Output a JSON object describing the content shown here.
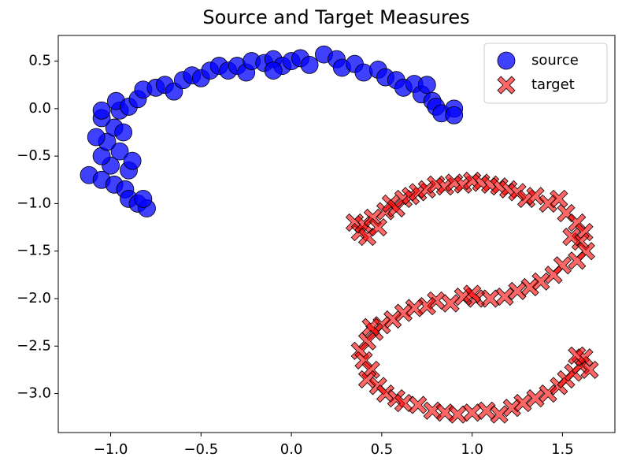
{
  "chart_data": {
    "type": "scatter",
    "title": "Source and Target Measures",
    "xlim": [
      -1.29,
      1.79
    ],
    "ylim": [
      -3.41,
      0.77
    ],
    "xticks": [
      {
        "value": -1.0,
        "label": "−1.0"
      },
      {
        "value": -0.5,
        "label": "−0.5"
      },
      {
        "value": 0.0,
        "label": "0.0"
      },
      0.5,
      {
        "value": 1.0,
        "label": "1.0"
      },
      1.5
    ],
    "yticks": [
      0.5,
      {
        "value": 0.0,
        "label": "0.0"
      },
      {
        "value": -0.5,
        "label": "−0.5"
      },
      {
        "value": -1.0,
        "label": "−1.0"
      },
      {
        "value": -1.5,
        "label": "−1.5"
      },
      {
        "value": -2.0,
        "label": "−2.0"
      },
      {
        "value": -2.5,
        "label": "−2.5"
      },
      {
        "value": -3.0,
        "label": "−3.0"
      }
    ],
    "grid": false,
    "legend": "upper right",
    "series": [
      {
        "name": "source",
        "color": "#0000ff",
        "marker": "circle",
        "x": [
          -1.12,
          -1.05,
          -0.98,
          -0.92,
          -0.9,
          -0.85,
          -0.8,
          -0.82,
          -1.0,
          -1.05,
          -0.95,
          -1.02,
          -1.08,
          -0.98,
          -1.05,
          -0.95,
          -1.05,
          -0.97,
          -0.9,
          -0.85,
          -0.82,
          -0.75,
          -0.7,
          -0.65,
          -0.6,
          -0.55,
          -0.5,
          -0.45,
          -0.4,
          -0.35,
          -0.3,
          -0.25,
          -0.22,
          -0.15,
          -0.1,
          -0.05,
          -0.1,
          0.0,
          0.05,
          0.1,
          0.18,
          0.25,
          0.28,
          0.35,
          0.4,
          0.48,
          0.52,
          0.58,
          0.62,
          0.68,
          0.72,
          0.75,
          0.78,
          0.8,
          0.83,
          0.9,
          0.9,
          -0.9,
          -0.93,
          -0.88
        ],
        "values": [
          -0.7,
          -0.75,
          -0.8,
          -0.85,
          -0.95,
          -1.0,
          -1.05,
          -0.95,
          -0.6,
          -0.5,
          -0.45,
          -0.35,
          -0.3,
          -0.2,
          -0.1,
          -0.02,
          -0.02,
          0.08,
          0.02,
          0.1,
          0.2,
          0.22,
          0.25,
          0.18,
          0.3,
          0.35,
          0.32,
          0.4,
          0.45,
          0.4,
          0.45,
          0.38,
          0.5,
          0.48,
          0.52,
          0.45,
          0.4,
          0.5,
          0.53,
          0.46,
          0.57,
          0.52,
          0.43,
          0.47,
          0.38,
          0.41,
          0.33,
          0.3,
          0.22,
          0.26,
          0.15,
          0.25,
          0.08,
          0.02,
          -0.05,
          0.0,
          -0.07,
          -0.65,
          -0.25,
          -0.55
        ]
      },
      {
        "name": "target",
        "color": "#ff0000",
        "marker": "x",
        "x": [
          0.35,
          0.38,
          0.4,
          0.42,
          0.45,
          0.48,
          0.52,
          0.55,
          0.58,
          0.62,
          0.66,
          0.7,
          0.75,
          0.8,
          0.85,
          0.9,
          0.95,
          1.0,
          1.05,
          1.1,
          1.15,
          1.2,
          1.25,
          1.3,
          1.35,
          1.42,
          1.48,
          1.52,
          1.58,
          1.62,
          1.6,
          1.55,
          1.63,
          1.58,
          1.5,
          1.45,
          1.38,
          1.32,
          1.25,
          1.18,
          1.1,
          1.02,
          0.95,
          0.88,
          0.8,
          0.75,
          0.68,
          0.62,
          0.56,
          0.5,
          0.46,
          0.42,
          0.38,
          0.4,
          0.44,
          0.42,
          0.48,
          0.52,
          0.58,
          0.62,
          0.7,
          0.78,
          0.85,
          0.92,
          1.0,
          1.08,
          1.15,
          1.22,
          1.28,
          1.35,
          1.42,
          1.48,
          1.52,
          1.56,
          1.6,
          1.62,
          1.65,
          1.58,
          0.44,
          1.0
        ],
        "values": [
          -1.2,
          -1.3,
          -1.22,
          -1.35,
          -1.15,
          -1.25,
          -1.08,
          -1.0,
          -1.05,
          -0.95,
          -0.92,
          -0.88,
          -0.85,
          -0.8,
          -0.82,
          -0.78,
          -0.8,
          -0.76,
          -0.78,
          -0.8,
          -0.82,
          -0.85,
          -0.88,
          -0.95,
          -0.92,
          -1.0,
          -0.95,
          -1.1,
          -1.2,
          -1.3,
          -1.4,
          -1.35,
          -1.5,
          -1.6,
          -1.65,
          -1.75,
          -1.82,
          -1.88,
          -1.92,
          -1.98,
          -2.0,
          -2.0,
          -1.98,
          -2.05,
          -2.02,
          -2.08,
          -2.1,
          -2.15,
          -2.22,
          -2.28,
          -2.35,
          -2.45,
          -2.55,
          -2.65,
          -2.75,
          -2.85,
          -2.92,
          -3.0,
          -3.05,
          -3.1,
          -3.12,
          -3.18,
          -3.2,
          -3.22,
          -3.2,
          -3.18,
          -3.22,
          -3.15,
          -3.1,
          -3.05,
          -3.0,
          -2.92,
          -2.85,
          -2.78,
          -2.7,
          -2.62,
          -2.75,
          -2.6,
          -2.3,
          -1.95
        ]
      }
    ]
  }
}
